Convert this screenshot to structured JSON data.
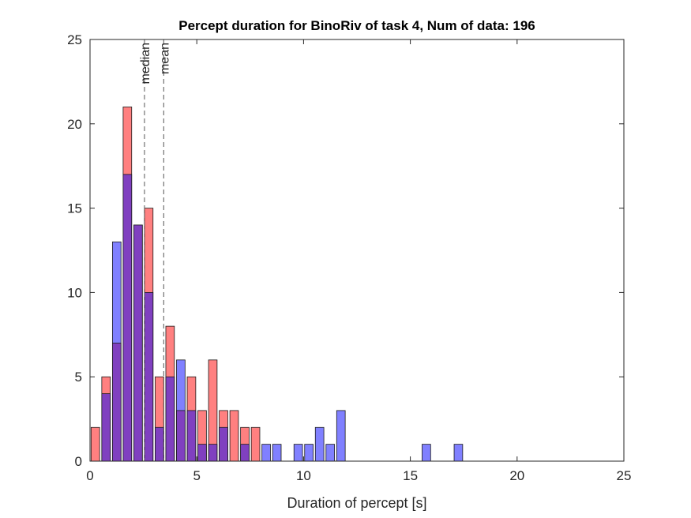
{
  "chart_data": {
    "type": "bar",
    "title": "Percept duration for BinoRiv of task 4, Num of data: 196",
    "xlabel": "Duration of percept [s]",
    "ylabel": "",
    "xlim": [
      0,
      25
    ],
    "ylim": [
      0,
      25
    ],
    "xticks": [
      "0",
      "5",
      "10",
      "15",
      "20",
      "25"
    ],
    "yticks": [
      "0",
      "5",
      "10",
      "15",
      "20",
      "25"
    ],
    "bin_width": 0.5,
    "bin_centers": [
      0.25,
      0.75,
      1.25,
      1.75,
      2.25,
      2.75,
      3.25,
      3.75,
      4.25,
      4.75,
      5.25,
      5.75,
      6.25,
      6.75,
      7.25,
      7.75,
      8.25,
      8.75,
      9.25,
      9.75,
      10.25,
      10.75,
      11.25,
      11.75,
      12.25,
      12.75,
      13.25,
      13.75,
      14.25,
      14.75,
      15.25,
      15.75,
      16.25,
      16.75,
      17.25,
      17.75,
      18.25,
      18.75,
      19.25,
      19.75,
      20.25,
      20.75,
      21.25,
      21.75,
      22.25,
      22.75,
      23.25,
      23.75,
      24.25,
      24.75
    ],
    "series": [
      {
        "color": "#ff8080",
        "values": [
          2,
          5,
          7,
          21,
          14,
          15,
          5,
          8,
          3,
          5,
          3,
          6,
          3,
          3,
          2,
          2,
          0,
          0,
          0,
          0,
          0,
          0,
          0,
          0,
          0,
          0,
          0,
          0,
          0,
          0,
          0,
          0,
          0,
          0,
          0,
          0,
          0,
          0,
          0,
          0,
          0,
          0,
          0,
          0,
          0,
          0,
          0,
          0,
          0,
          0
        ]
      },
      {
        "color": "#8080ff",
        "values": [
          0,
          4,
          13,
          17,
          14,
          10,
          2,
          5,
          6,
          3,
          1,
          1,
          2,
          0,
          1,
          0,
          1,
          1,
          0,
          1,
          1,
          2,
          1,
          3,
          0,
          0,
          0,
          0,
          0,
          0,
          0,
          1,
          0,
          0,
          1,
          0,
          0,
          0,
          0,
          0,
          0,
          0,
          0,
          0,
          0,
          0,
          0,
          0,
          0,
          0
        ]
      }
    ],
    "overlap_color": "#8040c0",
    "reference_lines": [
      {
        "label": "median",
        "x": 2.55
      },
      {
        "label": "mean",
        "x": 3.45
      }
    ],
    "grid": false,
    "legend": "none"
  }
}
